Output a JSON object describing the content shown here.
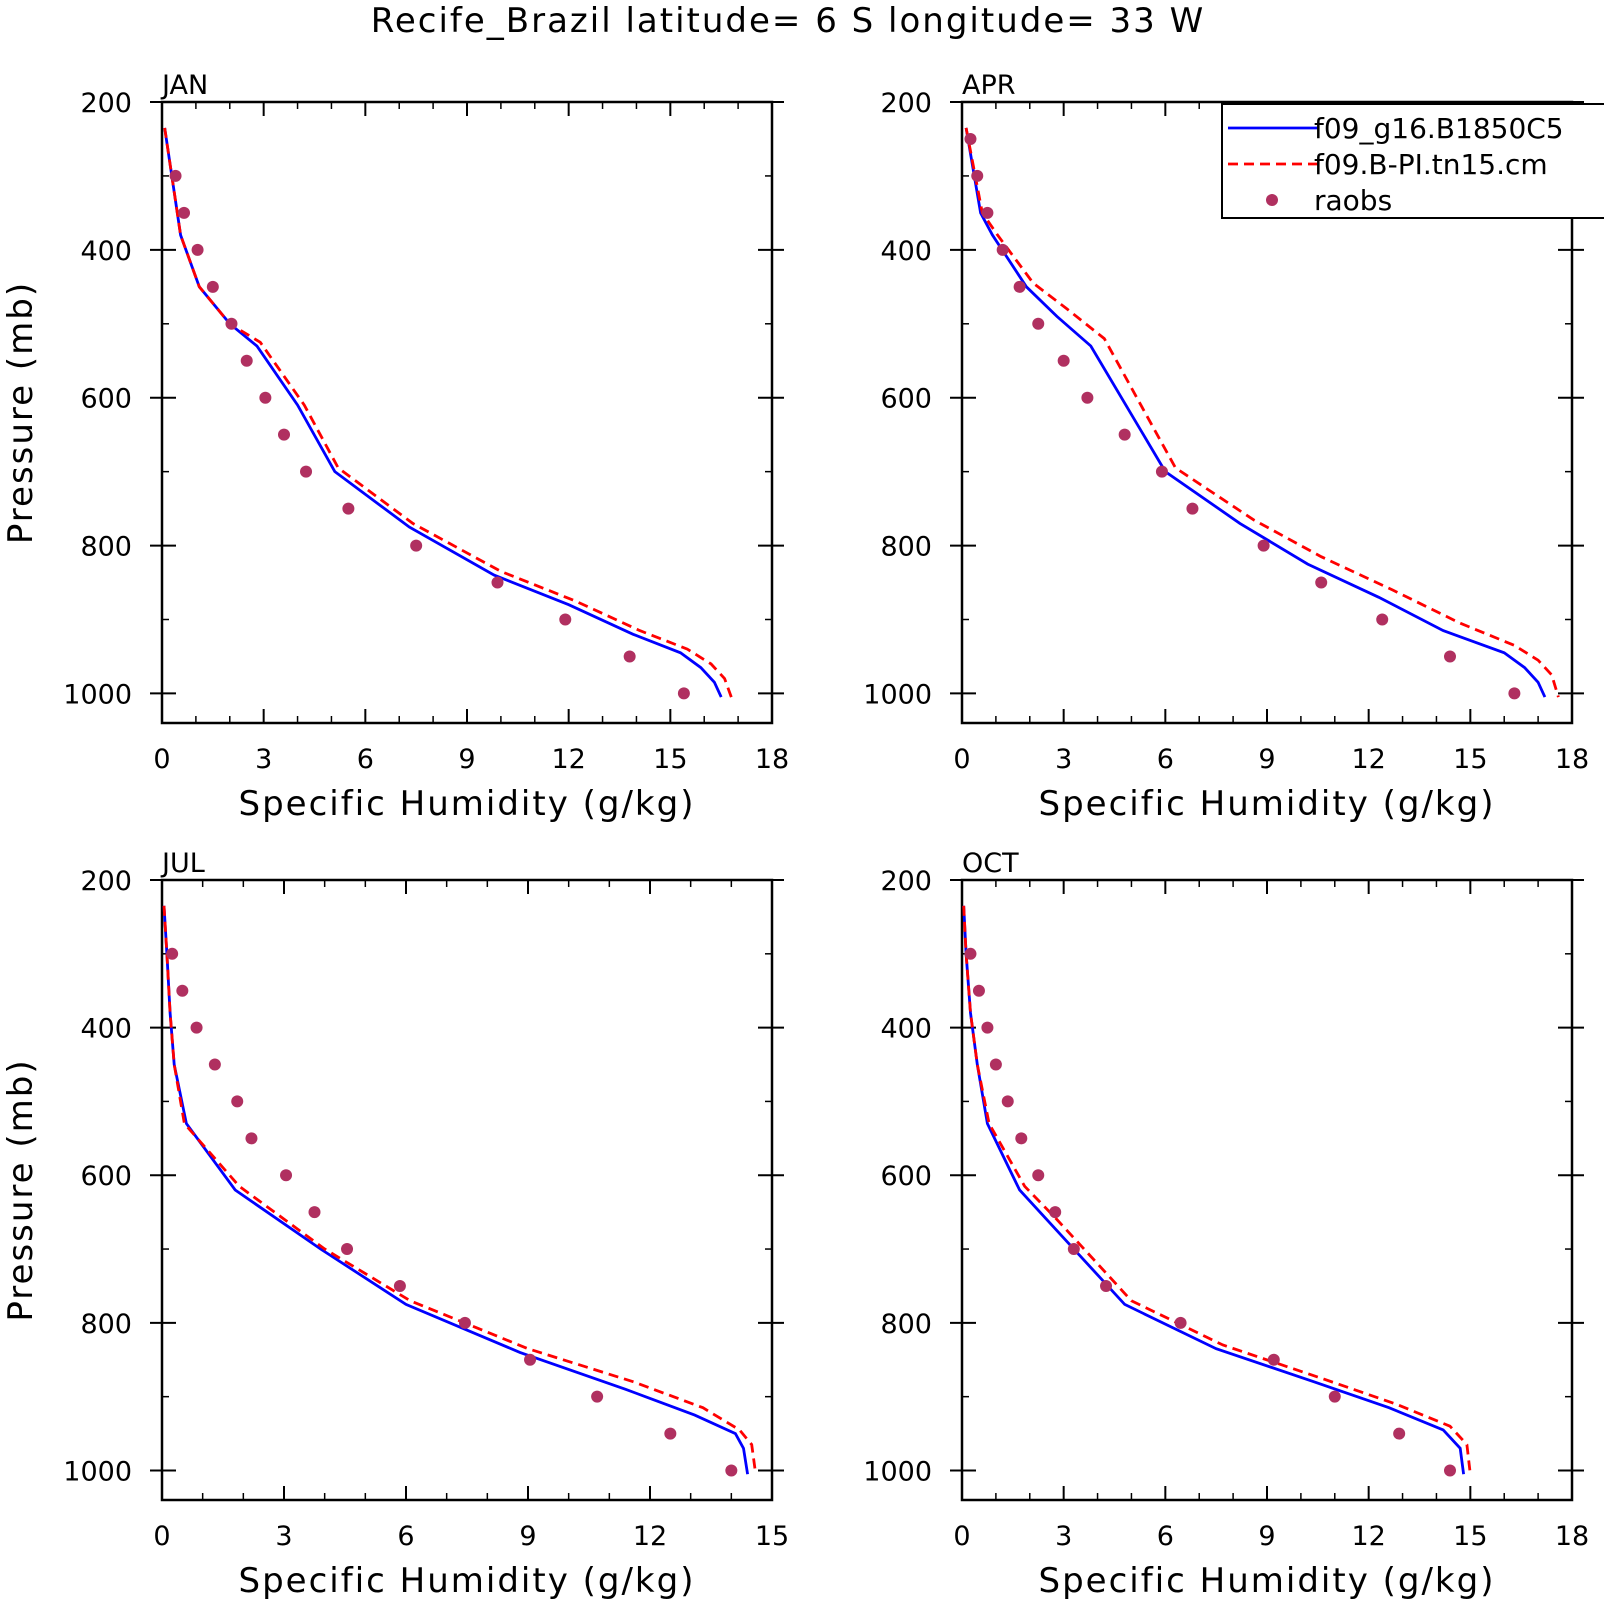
{
  "title": "Recife_Brazil  latitude= 6 S longitude= 33 W",
  "colors": {
    "model1": "#0000ff",
    "model2": "#ff0000",
    "raobs": "#b03060",
    "axes": "#000000"
  },
  "legend": {
    "placement": "top-right",
    "entries": [
      {
        "label": "f09_g16.B1850C5",
        "style": "solid",
        "color": "#0000ff"
      },
      {
        "label": "f09.B-PI.tn15.cm",
        "style": "dashed",
        "color": "#ff0000"
      },
      {
        "label": "raobs",
        "style": "dot",
        "color": "#b03060"
      }
    ]
  },
  "chart_data": [
    {
      "type": "line",
      "panel": "JAN",
      "xlabel": "Specific Humidity (g/kg)",
      "ylabel": "Pressure (mb)",
      "xlim": [
        0,
        18
      ],
      "ylim": [
        200,
        1040
      ],
      "y_inverted": true,
      "xticks": [
        0,
        3,
        6,
        9,
        12,
        15,
        18
      ],
      "yticks": [
        200,
        400,
        600,
        800,
        1000
      ],
      "series": [
        {
          "name": "f09_g16.B1850C5",
          "x": [
            0.08,
            0.55,
            1.1,
            2.0,
            2.8,
            4.0,
            5.1,
            7.3,
            9.8,
            12.0,
            13.9,
            15.3,
            15.9,
            16.3,
            16.5
          ],
          "y": [
            235,
            380,
            450,
            500,
            530,
            610,
            700,
            775,
            840,
            880,
            920,
            945,
            965,
            985,
            1005
          ]
        },
        {
          "name": "f09.B-PI.tn15.cm",
          "x": [
            0.08,
            0.55,
            1.1,
            2.0,
            2.9,
            4.2,
            5.2,
            7.4,
            10.0,
            12.2,
            14.1,
            15.5,
            16.2,
            16.6,
            16.8
          ],
          "y": [
            235,
            380,
            450,
            500,
            525,
            610,
            695,
            770,
            835,
            875,
            915,
            940,
            960,
            980,
            1005
          ]
        },
        {
          "name": "raobs",
          "x": [
            0.4,
            0.65,
            1.05,
            1.5,
            2.05,
            2.5,
            3.05,
            3.6,
            4.25,
            5.5,
            7.5,
            9.9,
            11.9,
            13.8,
            15.4
          ],
          "y": [
            300,
            350,
            400,
            450,
            500,
            550,
            600,
            650,
            700,
            750,
            800,
            850,
            900,
            950,
            1000
          ]
        }
      ]
    },
    {
      "type": "line",
      "panel": "APR",
      "xlabel": "Specific Humidity (g/kg)",
      "ylabel": "",
      "xlim": [
        0,
        18
      ],
      "ylim": [
        200,
        1040
      ],
      "y_inverted": true,
      "xticks": [
        0,
        3,
        6,
        9,
        12,
        15,
        18
      ],
      "yticks": [
        200,
        400,
        600,
        800,
        1000
      ],
      "series": [
        {
          "name": "f09_g16.B1850C5",
          "x": [
            0.12,
            0.55,
            0.9,
            1.9,
            2.8,
            3.8,
            6.0,
            8.2,
            10.2,
            12.3,
            14.2,
            16.0,
            16.6,
            17.0,
            17.2
          ],
          "y": [
            235,
            350,
            380,
            450,
            490,
            530,
            700,
            770,
            825,
            870,
            915,
            945,
            965,
            985,
            1005
          ]
        },
        {
          "name": "f09.B-PI.tn15.cm",
          "x": [
            0.12,
            0.6,
            1.05,
            2.1,
            3.1,
            4.2,
            6.3,
            8.6,
            10.6,
            12.7,
            14.7,
            16.3,
            17.0,
            17.4,
            17.6
          ],
          "y": [
            235,
            350,
            380,
            445,
            480,
            520,
            695,
            765,
            815,
            860,
            905,
            935,
            955,
            975,
            1005
          ]
        },
        {
          "name": "raobs",
          "x": [
            0.25,
            0.45,
            0.75,
            1.2,
            1.7,
            2.25,
            3.0,
            3.7,
            4.8,
            5.9,
            6.8,
            8.9,
            10.6,
            12.4,
            14.4,
            16.3
          ],
          "y": [
            250,
            300,
            350,
            400,
            450,
            500,
            550,
            600,
            650,
            700,
            750,
            800,
            850,
            900,
            950,
            1000
          ]
        }
      ]
    },
    {
      "type": "line",
      "panel": "JUL",
      "xlabel": "Specific Humidity (g/kg)",
      "ylabel": "Pressure (mb)",
      "xlim": [
        0,
        15
      ],
      "ylim": [
        200,
        1040
      ],
      "y_inverted": true,
      "xticks": [
        0,
        3,
        6,
        9,
        12,
        15
      ],
      "yticks": [
        200,
        400,
        600,
        800,
        1000
      ],
      "series": [
        {
          "name": "f09_g16.B1850C5",
          "x": [
            0.05,
            0.12,
            0.2,
            0.3,
            0.6,
            1.8,
            3.9,
            6.0,
            8.8,
            11.4,
            13.1,
            14.1,
            14.3,
            14.4
          ],
          "y": [
            235,
            300,
            380,
            450,
            530,
            620,
            700,
            775,
            840,
            890,
            925,
            950,
            970,
            1005
          ]
        },
        {
          "name": "f09.B-PI.tn15.cm",
          "x": [
            0.05,
            0.12,
            0.2,
            0.3,
            0.55,
            1.9,
            4.0,
            6.1,
            9.0,
            11.6,
            13.3,
            14.2,
            14.5,
            14.6
          ],
          "y": [
            235,
            300,
            380,
            450,
            530,
            615,
            700,
            770,
            835,
            880,
            915,
            945,
            965,
            1005
          ]
        },
        {
          "name": "raobs",
          "x": [
            0.25,
            0.5,
            0.85,
            1.3,
            1.85,
            2.2,
            3.05,
            3.75,
            4.55,
            5.85,
            7.45,
            9.05,
            10.7,
            12.5,
            14.0
          ],
          "y": [
            300,
            350,
            400,
            450,
            500,
            550,
            600,
            650,
            700,
            750,
            800,
            850,
            900,
            950,
            1000
          ]
        }
      ]
    },
    {
      "type": "line",
      "panel": "OCT",
      "xlabel": "Specific Humidity (g/kg)",
      "ylabel": "",
      "xlim": [
        0,
        18
      ],
      "ylim": [
        200,
        1040
      ],
      "y_inverted": true,
      "xticks": [
        0,
        3,
        6,
        9,
        12,
        15,
        18
      ],
      "yticks": [
        200,
        400,
        600,
        800,
        1000
      ],
      "series": [
        {
          "name": "f09_g16.B1850C5",
          "x": [
            0.05,
            0.12,
            0.25,
            0.45,
            0.75,
            1.7,
            2.6,
            3.7,
            4.8,
            7.5,
            10.4,
            12.6,
            14.2,
            14.7,
            14.8
          ],
          "y": [
            235,
            300,
            380,
            450,
            530,
            620,
            665,
            720,
            775,
            835,
            880,
            915,
            945,
            970,
            1005
          ]
        },
        {
          "name": "f09.B-PI.tn15.cm",
          "x": [
            0.05,
            0.12,
            0.25,
            0.45,
            0.8,
            1.85,
            2.8,
            3.9,
            5.0,
            7.7,
            10.6,
            12.8,
            14.4,
            14.9,
            15.0
          ],
          "y": [
            235,
            300,
            380,
            450,
            530,
            615,
            660,
            715,
            770,
            830,
            875,
            910,
            940,
            965,
            1005
          ]
        },
        {
          "name": "raobs",
          "x": [
            0.25,
            0.5,
            0.75,
            1.0,
            1.35,
            1.75,
            2.25,
            2.75,
            3.3,
            4.25,
            6.45,
            9.2,
            11.0,
            12.9,
            14.4
          ],
          "y": [
            300,
            350,
            400,
            450,
            500,
            550,
            600,
            650,
            700,
            750,
            800,
            850,
            900,
            950,
            1000
          ]
        }
      ]
    }
  ]
}
